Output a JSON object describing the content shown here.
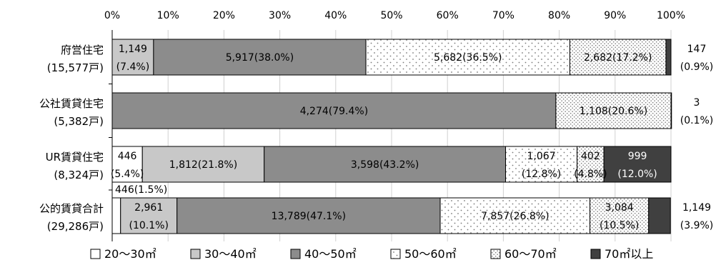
{
  "chart_data": {
    "type": "bar",
    "stacked": true,
    "orientation": "horizontal",
    "percent": true,
    "xlim": [
      0,
      100
    ],
    "x_ticks": [
      "0%",
      "10%",
      "20%",
      "30%",
      "40%",
      "50%",
      "60%",
      "70%",
      "80%",
      "90%",
      "100%"
    ],
    "grid": true,
    "legend_position": "bottom",
    "categories": [
      {
        "name": "府営住宅",
        "total": "(15,577戸)"
      },
      {
        "name": "公社賃貸住宅",
        "total": "(5,382戸)"
      },
      {
        "name": "UR賃貸住宅",
        "total": "(8,324戸)"
      },
      {
        "name": "公的賃貸合計",
        "total": "(29,286戸)"
      }
    ],
    "series": [
      {
        "name": "20～30㎡",
        "color": "#ffffff",
        "pattern": "none",
        "values": [
          0.0,
          0.0,
          5.4,
          1.5
        ],
        "labels": [
          [
            "",
            ""
          ],
          [
            "",
            ""
          ],
          [
            "446",
            "(5.4%)"
          ],
          [
            "446(1.5%)",
            ""
          ]
        ]
      },
      {
        "name": "30～40㎡",
        "color": "#c8c8c8",
        "pattern": "none",
        "values": [
          7.4,
          0.0,
          21.8,
          10.1
        ],
        "labels": [
          [
            "1,149",
            "(7.4%)"
          ],
          [
            "",
            ""
          ],
          [
            "1,812(21.8%)",
            ""
          ],
          [
            "2,961",
            "(10.1%)"
          ]
        ]
      },
      {
        "name": "40～50㎡",
        "color": "#8c8c8c",
        "pattern": "none",
        "values": [
          38.0,
          79.4,
          43.2,
          47.1
        ],
        "labels": [
          [
            "5,917(38.0%)",
            ""
          ],
          [
            "4,274(79.4%)",
            ""
          ],
          [
            "3,598(43.2%)",
            ""
          ],
          [
            "13,789(47.1%)",
            ""
          ]
        ]
      },
      {
        "name": "50～60㎡",
        "color": "#ffffff",
        "pattern": "sparse",
        "values": [
          36.5,
          0.0,
          12.8,
          26.8
        ],
        "labels": [
          [
            "5,682(36.5%)",
            ""
          ],
          [
            "",
            ""
          ],
          [
            "1,067",
            "(12.8%)"
          ],
          [
            "7,857(26.8%)",
            ""
          ]
        ]
      },
      {
        "name": "60～70㎡",
        "color": "#ffffff",
        "pattern": "dense",
        "values": [
          17.2,
          20.6,
          4.8,
          10.5
        ],
        "labels": [
          [
            "2,682(17.2%)",
            ""
          ],
          [
            "1,108(20.6%)",
            ""
          ],
          [
            "402",
            "(4.8%)"
          ],
          [
            "3,084",
            "(10.5%)"
          ]
        ]
      },
      {
        "name": "70㎡以上",
        "color": "#404040",
        "pattern": "none",
        "values": [
          0.9,
          0.1,
          12.0,
          3.9
        ],
        "labels": [
          [
            "",
            ""
          ],
          [
            "",
            ""
          ],
          [
            "999",
            "(12.0%)"
          ],
          [
            "",
            ""
          ]
        ]
      }
    ],
    "outside_labels": [
      [
        "147",
        "(0.9%)"
      ],
      [
        "3",
        "(0.1%)"
      ],
      [
        "",
        ""
      ],
      [
        "1,149",
        "(3.9%)"
      ]
    ]
  }
}
